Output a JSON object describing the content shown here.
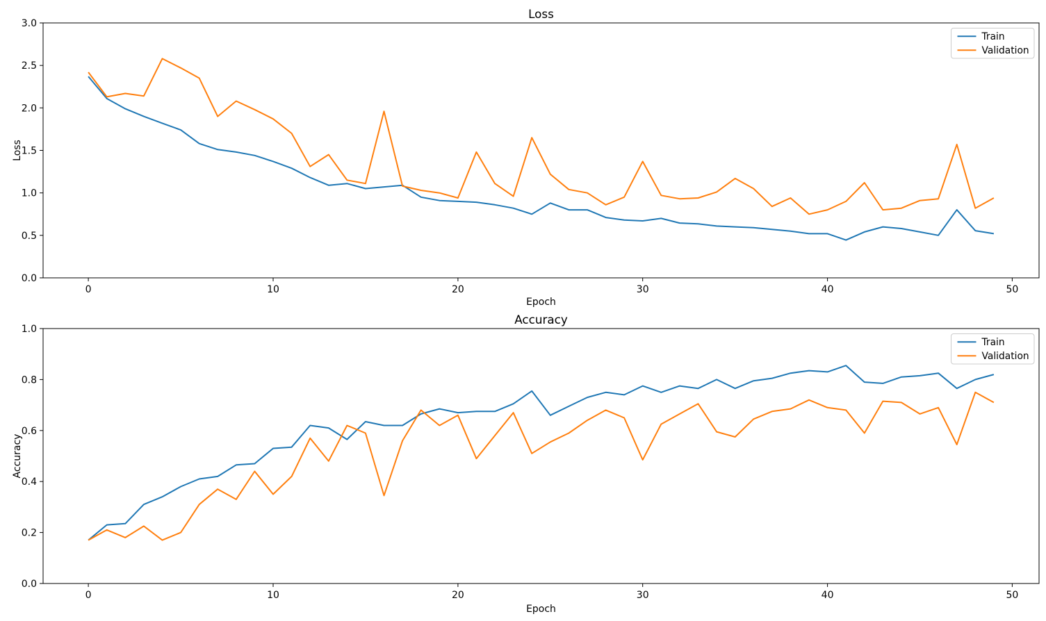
{
  "figure": {
    "background": "#ffffff",
    "text_color": "#000000"
  },
  "chart_data": [
    {
      "type": "line",
      "title": "Loss",
      "xlabel": "Epoch",
      "ylabel": "Loss",
      "xlim": [
        -2.45,
        51.45
      ],
      "ylim": [
        0.0,
        3.0
      ],
      "xticks": [
        0,
        10,
        20,
        30,
        40,
        50
      ],
      "ytick_labels": [
        "0.0",
        "0.5",
        "1.0",
        "1.5",
        "2.0",
        "2.5",
        "3.0"
      ],
      "ytick_values": [
        0.0,
        0.5,
        1.0,
        1.5,
        2.0,
        2.5,
        3.0
      ],
      "grid": false,
      "legend_position": "upper right",
      "legend": [
        "Train",
        "Validation"
      ],
      "x": [
        0,
        1,
        2,
        3,
        4,
        5,
        6,
        7,
        8,
        9,
        10,
        11,
        12,
        13,
        14,
        15,
        16,
        17,
        18,
        19,
        20,
        21,
        22,
        23,
        24,
        25,
        26,
        27,
        28,
        29,
        30,
        31,
        32,
        33,
        34,
        35,
        36,
        37,
        38,
        39,
        40,
        41,
        42,
        43,
        44,
        45,
        46,
        47,
        48,
        49
      ],
      "series": [
        {
          "name": "Train",
          "color": "#1f77b4",
          "values": [
            2.37,
            2.11,
            1.99,
            1.9,
            1.82,
            1.74,
            1.58,
            1.51,
            1.48,
            1.44,
            1.37,
            1.29,
            1.18,
            1.09,
            1.11,
            1.05,
            1.07,
            1.09,
            0.95,
            0.91,
            0.9,
            0.89,
            0.86,
            0.82,
            0.75,
            0.88,
            0.8,
            0.8,
            0.71,
            0.68,
            0.67,
            0.7,
            0.645,
            0.635,
            0.61,
            0.6,
            0.59,
            0.57,
            0.55,
            0.52,
            0.52,
            0.445,
            0.54,
            0.6,
            0.58,
            0.54,
            0.5,
            0.8,
            0.555,
            0.52
          ]
        },
        {
          "name": "Validation",
          "color": "#ff7f0e",
          "values": [
            2.42,
            2.13,
            2.17,
            2.14,
            2.58,
            2.47,
            2.35,
            1.9,
            2.08,
            1.98,
            1.87,
            1.7,
            1.31,
            1.45,
            1.15,
            1.11,
            1.96,
            1.08,
            1.03,
            1.0,
            0.94,
            1.48,
            1.11,
            0.96,
            1.65,
            1.22,
            1.04,
            1.0,
            0.86,
            0.95,
            1.37,
            0.97,
            0.93,
            0.94,
            1.01,
            1.17,
            1.05,
            0.84,
            0.94,
            0.75,
            0.8,
            0.9,
            1.12,
            0.8,
            0.82,
            0.91,
            0.93,
            1.57,
            0.82,
            0.94
          ]
        }
      ]
    },
    {
      "type": "line",
      "title": "Accuracy",
      "xlabel": "Epoch",
      "ylabel": "Accuracy",
      "xlim": [
        -2.45,
        51.45
      ],
      "ylim": [
        0.0,
        1.0
      ],
      "xticks": [
        0,
        10,
        20,
        30,
        40,
        50
      ],
      "ytick_labels": [
        "0.0",
        "0.2",
        "0.4",
        "0.6",
        "0.8",
        "1.0"
      ],
      "ytick_values": [
        0.0,
        0.2,
        0.4,
        0.6,
        0.8,
        1.0
      ],
      "grid": false,
      "legend_position": "upper right",
      "legend": [
        "Train",
        "Validation"
      ],
      "x": [
        0,
        1,
        2,
        3,
        4,
        5,
        6,
        7,
        8,
        9,
        10,
        11,
        12,
        13,
        14,
        15,
        16,
        17,
        18,
        19,
        20,
        21,
        22,
        23,
        24,
        25,
        26,
        27,
        28,
        29,
        30,
        31,
        32,
        33,
        34,
        35,
        36,
        37,
        38,
        39,
        40,
        41,
        42,
        43,
        44,
        45,
        46,
        47,
        48,
        49
      ],
      "series": [
        {
          "name": "Train",
          "color": "#1f77b4",
          "values": [
            0.17,
            0.23,
            0.235,
            0.31,
            0.34,
            0.38,
            0.41,
            0.42,
            0.465,
            0.47,
            0.53,
            0.535,
            0.62,
            0.61,
            0.565,
            0.635,
            0.62,
            0.62,
            0.665,
            0.685,
            0.67,
            0.675,
            0.675,
            0.705,
            0.755,
            0.66,
            0.695,
            0.73,
            0.75,
            0.74,
            0.775,
            0.75,
            0.775,
            0.765,
            0.8,
            0.765,
            0.795,
            0.805,
            0.825,
            0.835,
            0.83,
            0.855,
            0.79,
            0.785,
            0.81,
            0.815,
            0.825,
            0.765,
            0.8,
            0.82
          ]
        },
        {
          "name": "Validation",
          "color": "#ff7f0e",
          "values": [
            0.17,
            0.21,
            0.18,
            0.225,
            0.17,
            0.2,
            0.31,
            0.37,
            0.33,
            0.44,
            0.35,
            0.42,
            0.57,
            0.48,
            0.62,
            0.59,
            0.345,
            0.56,
            0.68,
            0.62,
            0.66,
            0.49,
            0.58,
            0.67,
            0.51,
            0.555,
            0.59,
            0.64,
            0.68,
            0.65,
            0.485,
            0.625,
            0.665,
            0.705,
            0.595,
            0.575,
            0.645,
            0.675,
            0.685,
            0.72,
            0.69,
            0.68,
            0.59,
            0.715,
            0.71,
            0.665,
            0.69,
            0.545,
            0.75,
            0.71
          ]
        }
      ]
    }
  ]
}
